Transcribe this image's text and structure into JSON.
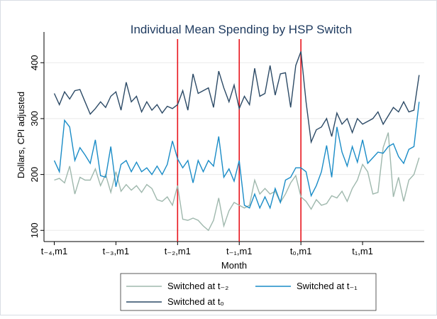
{
  "chart_data": {
    "type": "line",
    "title": "Individual Mean Spending by HSP Switch",
    "x_label": "Month",
    "y_label": "Dollars, CPI adjusted",
    "x": [
      0,
      1,
      2,
      3,
      4,
      5,
      6,
      7,
      8,
      9,
      10,
      11,
      12,
      13,
      14,
      15,
      16,
      17,
      18,
      19,
      20,
      21,
      22,
      23,
      24,
      25,
      26,
      27,
      28,
      29,
      30,
      31,
      32,
      33,
      34,
      35,
      36,
      37,
      38,
      39,
      40,
      41,
      42,
      43,
      44,
      45,
      46,
      47,
      48,
      49,
      50,
      51,
      52,
      53,
      54,
      55,
      56,
      57,
      58,
      59,
      60,
      61,
      62,
      63,
      64,
      65,
      66,
      67,
      68,
      69,
      70,
      71
    ],
    "xlim": [
      -2,
      72
    ],
    "xticks": [
      {
        "value": 0,
        "label": "t₋₄,m1"
      },
      {
        "value": 12,
        "label": "t₋₃,m1"
      },
      {
        "value": 24,
        "label": "t₋₂,m1"
      },
      {
        "value": 36,
        "label": "t₋₁,m1"
      },
      {
        "value": 48,
        "label": "t₀,m1"
      },
      {
        "value": 60,
        "label": "t₁,m1"
      }
    ],
    "ylim": [
      80,
      455
    ],
    "yticks": [
      100,
      200,
      300,
      400
    ],
    "grid": true,
    "vlines": [
      24,
      36,
      48
    ],
    "vline_color": "#e8141c",
    "series": [
      {
        "name": "Switched at t₋₂",
        "color": "#9fb8ad",
        "values": [
          190,
          193,
          185,
          215,
          165,
          195,
          190,
          190,
          210,
          180,
          200,
          168,
          205,
          170,
          182,
          172,
          180,
          168,
          182,
          175,
          155,
          152,
          160,
          145,
          180,
          120,
          118,
          122,
          118,
          108,
          100,
          118,
          158,
          108,
          135,
          150,
          145,
          140,
          145,
          190,
          165,
          175,
          165,
          170,
          150,
          165,
          185,
          198,
          160,
          152,
          138,
          155,
          145,
          148,
          162,
          158,
          170,
          152,
          175,
          190,
          218,
          205,
          165,
          168,
          248,
          275,
          160,
          195,
          152,
          190,
          200,
          230
        ]
      },
      {
        "name": "Switched at t₋₁",
        "color": "#1a8cc7",
        "values": [
          225,
          205,
          297,
          285,
          225,
          248,
          235,
          220,
          262,
          198,
          195,
          250,
          178,
          218,
          225,
          205,
          222,
          205,
          212,
          200,
          215,
          200,
          218,
          260,
          228,
          212,
          225,
          185,
          225,
          205,
          225,
          215,
          268,
          195,
          210,
          188,
          225,
          145,
          140,
          165,
          140,
          160,
          140,
          175,
          150,
          190,
          195,
          212,
          212,
          205,
          162,
          180,
          205,
          252,
          195,
          285,
          240,
          215,
          250,
          222,
          262,
          220,
          230,
          240,
          238,
          250,
          255,
          232,
          220,
          245,
          250,
          330
        ]
      },
      {
        "name": "Switched at t₀",
        "color": "#2c4a66",
        "values": [
          345,
          325,
          348,
          335,
          350,
          352,
          330,
          308,
          318,
          330,
          320,
          340,
          348,
          315,
          365,
          330,
          340,
          312,
          330,
          315,
          325,
          310,
          322,
          318,
          325,
          350,
          315,
          380,
          345,
          350,
          355,
          320,
          385,
          355,
          330,
          360,
          318,
          340,
          325,
          390,
          340,
          345,
          395,
          342,
          380,
          382,
          320,
          395,
          420,
          330,
          258,
          280,
          285,
          300,
          268,
          310,
          290,
          300,
          275,
          300,
          290,
          295,
          300,
          312,
          290,
          305,
          320,
          312,
          330,
          312,
          315,
          378
        ]
      }
    ]
  }
}
